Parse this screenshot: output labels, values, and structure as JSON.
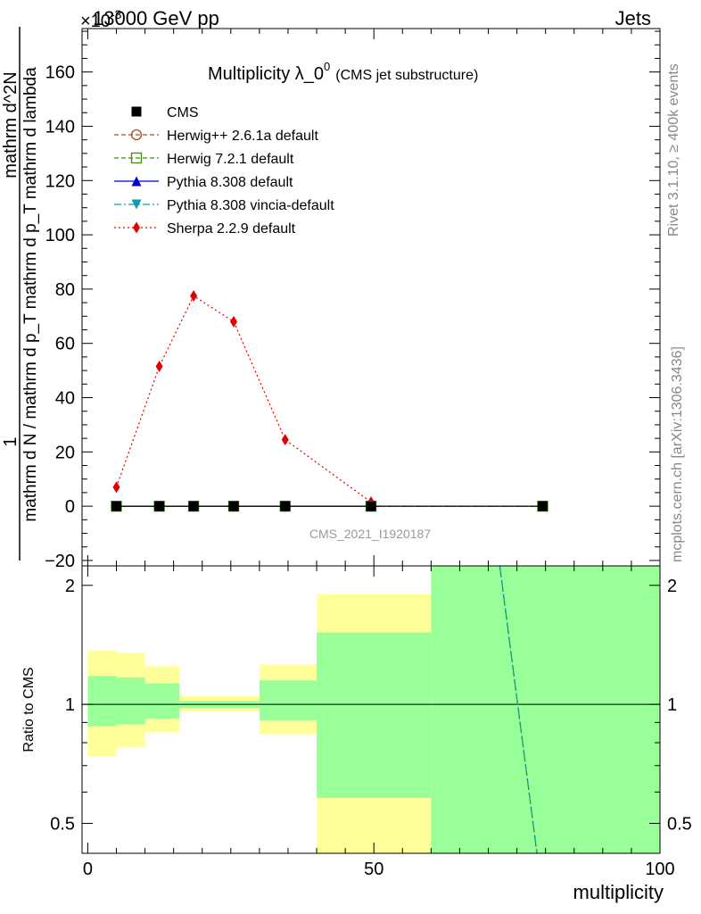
{
  "header": {
    "energy_label": "13000 GeV pp",
    "category_label": "Jets",
    "exponent_label": "×10",
    "exponent_power": "-3"
  },
  "side_labels": {
    "rivet": "Rivet 3.1.10, ≥ 400k events",
    "mcplots": "mcplots.cern.ch [arXiv:1306.3436]"
  },
  "chart_data": [
    {
      "type": "line",
      "title_main": "Multiplicity λ_0",
      "title_sup": "0",
      "title_sub": "(CMS jet substructure)",
      "watermark": "CMS_2021_I1920187",
      "ylabel_numerator": "1",
      "ylabel_denominator": "mathrm d N / mathrm d p_T mathrm d p_T mathrm d lambda",
      "ylabel_numerator_full": "mathrm d^2N",
      "ylim": [
        -22,
        176
      ],
      "yticks": [
        -20,
        0,
        20,
        40,
        60,
        80,
        100,
        120,
        140,
        160
      ],
      "xlim": [
        -1,
        100
      ],
      "legend": [
        {
          "name": "CMS",
          "color": "#000000",
          "marker": "square-filled",
          "dash": "none"
        },
        {
          "name": "Herwig++ 2.6.1a default",
          "color": "#a0522d",
          "marker": "circle-open",
          "dash": "dashed"
        },
        {
          "name": "Herwig 7.2.1 default",
          "color": "#3a8f0c",
          "marker": "square-open",
          "dash": "dashed"
        },
        {
          "name": "Pythia 8.308 default",
          "color": "#0000cc",
          "marker": "triangle-up",
          "dash": "solid"
        },
        {
          "name": "Pythia 8.308 vincia-default",
          "color": "#0f9cb0",
          "marker": "triangle-down",
          "dash": "dashdot"
        },
        {
          "name": "Sherpa 2.2.9 default",
          "color": "#e00000",
          "marker": "diamond",
          "dash": "dotted"
        }
      ],
      "series": [
        {
          "name": "Sherpa 2.2.9 default",
          "x": [
            5,
            12.5,
            18.5,
            25.5,
            34.5,
            49.5
          ],
          "y": [
            7,
            51.5,
            77.5,
            68,
            24.5,
            1.5
          ]
        },
        {
          "name": "Herwig++ 2.6.1a default",
          "x": [
            5,
            12.5,
            18.5,
            25.5,
            34.5,
            49.5
          ],
          "y": [
            0,
            0,
            0,
            0,
            0,
            0
          ]
        },
        {
          "name": "Herwig 7.2.1 default",
          "x": [
            5,
            12.5,
            18.5,
            25.5,
            34.5,
            49.5,
            79.5
          ],
          "y": [
            0,
            0,
            0,
            0,
            0,
            0,
            0
          ]
        },
        {
          "name": "Pythia 8.308 default",
          "x": [
            5,
            12.5,
            18.5,
            25.5,
            34.5,
            49.5
          ],
          "y": [
            0,
            0,
            0,
            0,
            0,
            0
          ]
        },
        {
          "name": "Pythia 8.308 vincia-default",
          "x": [
            5,
            12.5,
            18.5,
            25.5,
            34.5,
            49.5,
            79.5
          ],
          "y": [
            0,
            0,
            0,
            0,
            0,
            0,
            0
          ]
        },
        {
          "name": "CMS",
          "x": [
            5,
            12.5,
            18.5,
            25.5,
            34.5,
            49.5,
            79.5
          ],
          "y": [
            0,
            0,
            0,
            0,
            0,
            0,
            0
          ]
        }
      ]
    },
    {
      "type": "area",
      "ylabel": "Ratio to CMS",
      "xlabel": "multiplicity",
      "ylim": [
        0.42,
        2.24
      ],
      "xlim": [
        -1,
        100
      ],
      "yticks": [
        0.5,
        1,
        2
      ],
      "ytick_labels": [
        "0.5",
        "1",
        "2"
      ],
      "xticks": [
        0,
        50,
        100
      ],
      "xtick_labels": [
        "0",
        "50",
        "100"
      ],
      "reference": 1,
      "bands": [
        {
          "x0": 0,
          "x1": 5,
          "inner": [
            0.88,
            1.18
          ],
          "outer": [
            0.74,
            1.37
          ]
        },
        {
          "x0": 5,
          "x1": 10,
          "inner": [
            0.89,
            1.17
          ],
          "outer": [
            0.78,
            1.35
          ]
        },
        {
          "x0": 10,
          "x1": 16,
          "inner": [
            0.92,
            1.13
          ],
          "outer": [
            0.85,
            1.25
          ]
        },
        {
          "x0": 16,
          "x1": 30,
          "inner": [
            0.98,
            1.02
          ],
          "outer": [
            0.96,
            1.05
          ]
        },
        {
          "x0": 30,
          "x1": 40,
          "inner": [
            0.91,
            1.15
          ],
          "outer": [
            0.84,
            1.26
          ]
        },
        {
          "x0": 40,
          "x1": 60,
          "inner": [
            0.58,
            1.52
          ],
          "outer": [
            0.42,
            1.9
          ]
        },
        {
          "x0": 60,
          "x1": 100,
          "inner": [
            0.42,
            2.24
          ],
          "outer": [
            0.42,
            2.24
          ]
        }
      ],
      "series": [
        {
          "name": "Herwig 7.2.1 default",
          "x": [
            72,
            78.5
          ],
          "y": [
            2.24,
            0.42
          ]
        },
        {
          "name": "Pythia 8.308 vincia-default",
          "x": [
            72,
            78.5
          ],
          "y": [
            2.24,
            0.42
          ]
        }
      ]
    }
  ]
}
